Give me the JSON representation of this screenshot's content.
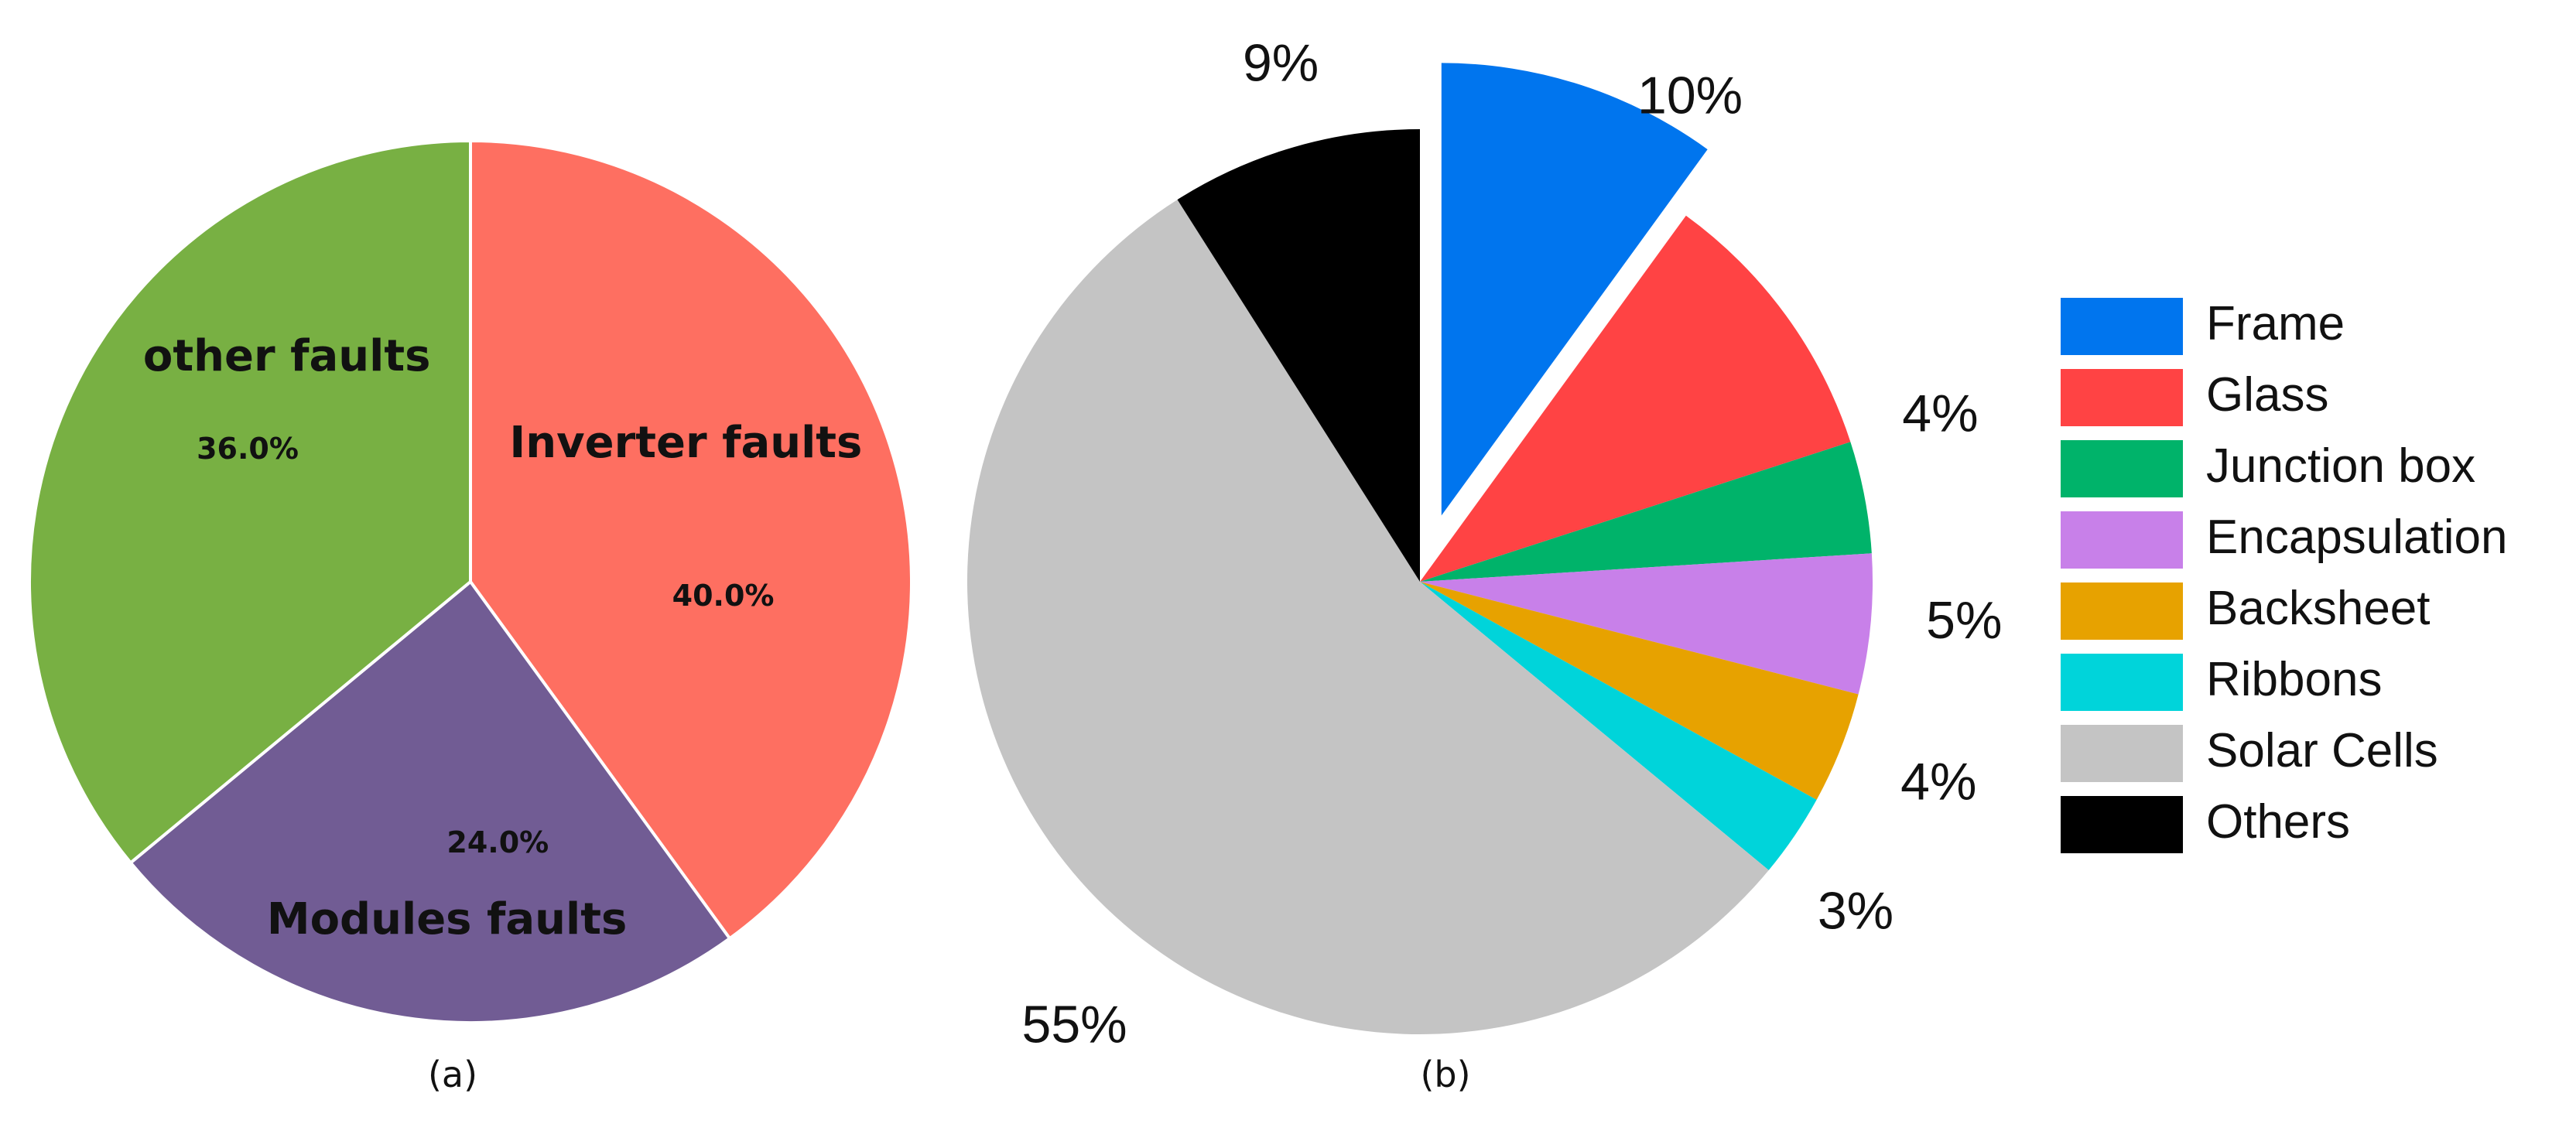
{
  "chart_data": [
    {
      "type": "pie",
      "caption": "(a)",
      "categories": [
        "Inverter faults",
        "Modules faults",
        "other faults"
      ],
      "values": [
        40.0,
        24.0,
        36.0
      ],
      "value_labels": [
        "40.0%",
        "24.0%",
        "36.0%"
      ],
      "colors": [
        "#fe6f61",
        "#715c94",
        "#78b043"
      ],
      "start_angle_deg": 0,
      "direction": "clockwise"
    },
    {
      "type": "pie",
      "caption": "(b)",
      "categories": [
        "Frame",
        "Glass",
        "Junction box",
        "Encapsulation",
        "Backsheet",
        "Ribbons",
        "Solar Cells",
        "Others"
      ],
      "values": [
        10,
        10,
        4,
        5,
        4,
        3,
        55,
        9
      ],
      "value_labels": [
        "",
        "10%",
        "4%",
        "5%",
        "4%",
        "3%",
        "55%",
        "9%"
      ],
      "colors": [
        "#0075ee",
        "#ff4344",
        "#00b36a",
        "#c880e9",
        "#e7a200",
        "#00d4da",
        "#c4c4c4",
        "#000000"
      ],
      "exploded": [
        "Frame"
      ],
      "start_angle_deg": 0,
      "direction": "clockwise",
      "legend": {
        "placement": "right",
        "entries": [
          "Frame",
          "Glass",
          "Junction box",
          "Encapsulation",
          "Backsheet",
          "Ribbons",
          "Solar Cells",
          "Others"
        ]
      }
    }
  ]
}
